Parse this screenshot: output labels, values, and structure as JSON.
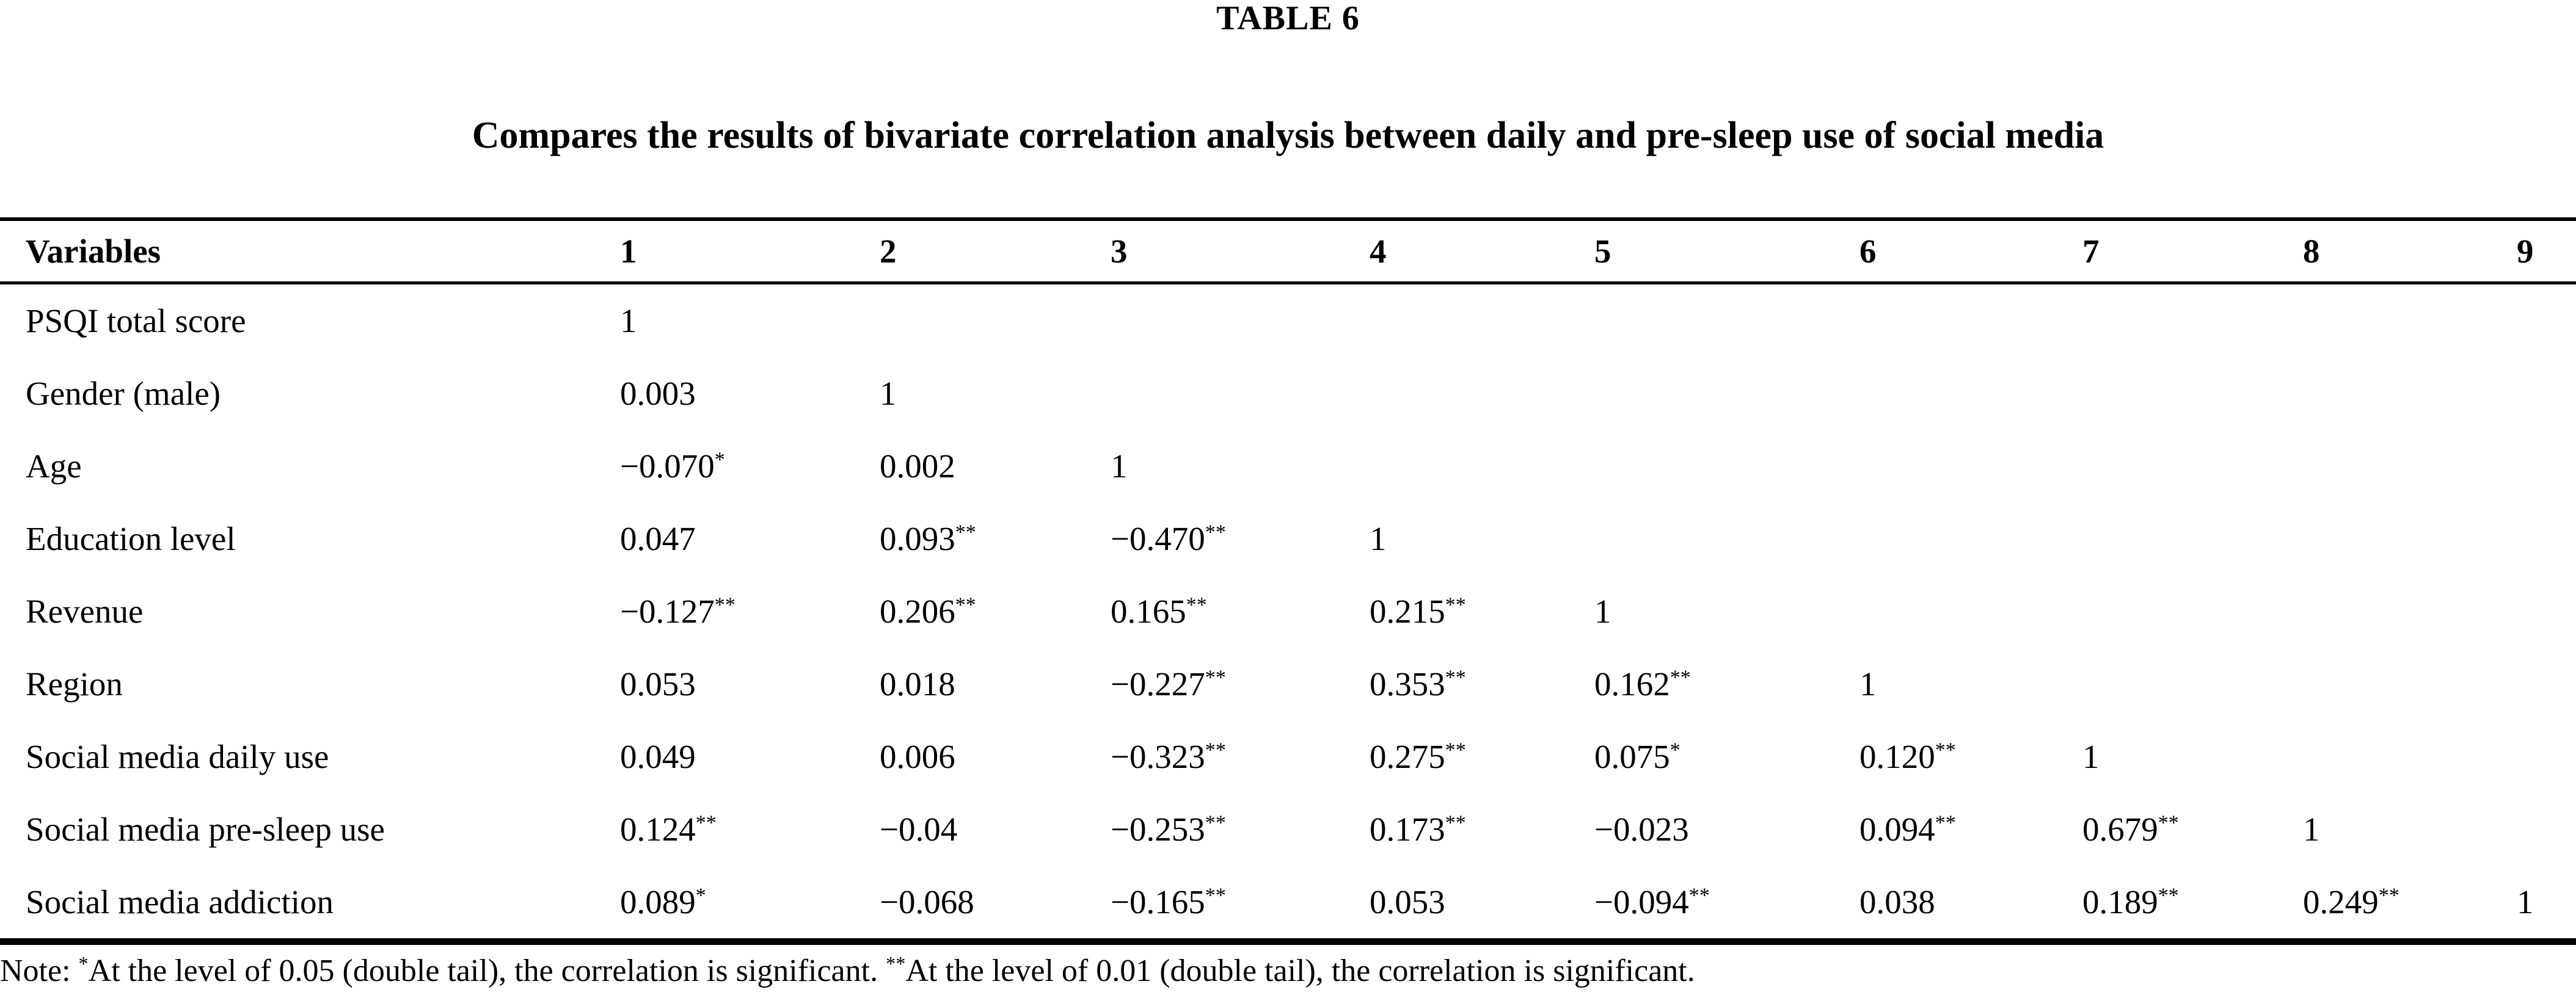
{
  "table_label": "TABLE 6",
  "title": "Compares the results of bivariate correlation analysis between daily and pre-sleep use of social media",
  "chart_data": {
    "type": "table",
    "title": "TABLE 6 — Compares the results of bivariate correlation analysis between daily and pre-sleep use of social media",
    "columns": [
      "Variables",
      "1",
      "2",
      "3",
      "4",
      "5",
      "6",
      "7",
      "8",
      "9"
    ],
    "rows": [
      {
        "variable": "PSQI total score",
        "values": [
          "1",
          "",
          "",
          "",
          "",
          "",
          "",
          "",
          ""
        ]
      },
      {
        "variable": "Gender (male)",
        "values": [
          "0.003",
          "1",
          "",
          "",
          "",
          "",
          "",
          "",
          ""
        ]
      },
      {
        "variable": "Age",
        "values": [
          "−0.070*",
          "0.002",
          "1",
          "",
          "",
          "",
          "",
          "",
          ""
        ]
      },
      {
        "variable": "Education level",
        "values": [
          "0.047",
          "0.093**",
          "−0.470**",
          "1",
          "",
          "",
          "",
          "",
          ""
        ]
      },
      {
        "variable": "Revenue",
        "values": [
          "−0.127**",
          "0.206**",
          "0.165**",
          "0.215**",
          "1",
          "",
          "",
          "",
          ""
        ]
      },
      {
        "variable": "Region",
        "values": [
          "0.053",
          "0.018",
          "−0.227**",
          "0.353**",
          "0.162**",
          "1",
          "",
          "",
          ""
        ]
      },
      {
        "variable": "Social media daily use",
        "values": [
          "0.049",
          "0.006",
          "−0.323**",
          "0.275**",
          "0.075*",
          "0.120**",
          "1",
          "",
          ""
        ]
      },
      {
        "variable": "Social media pre-sleep use",
        "values": [
          "0.124**",
          "−0.04",
          "−0.253**",
          "0.173**",
          "−0.023",
          "0.094**",
          "0.679**",
          "1",
          ""
        ]
      },
      {
        "variable": "Social media addiction",
        "values": [
          "0.089*",
          "−0.068",
          "−0.165**",
          "0.053",
          "−0.094**",
          "0.038",
          "0.189**",
          "0.249**",
          "1"
        ]
      }
    ]
  },
  "note": "Note: *At the level of 0.05 (double tail), the correlation is significant. **At the level of 0.01 (double tail), the correlation is significant.",
  "colors": {
    "text": "#000000",
    "background": "#ffffff",
    "rule": "#000000"
  }
}
